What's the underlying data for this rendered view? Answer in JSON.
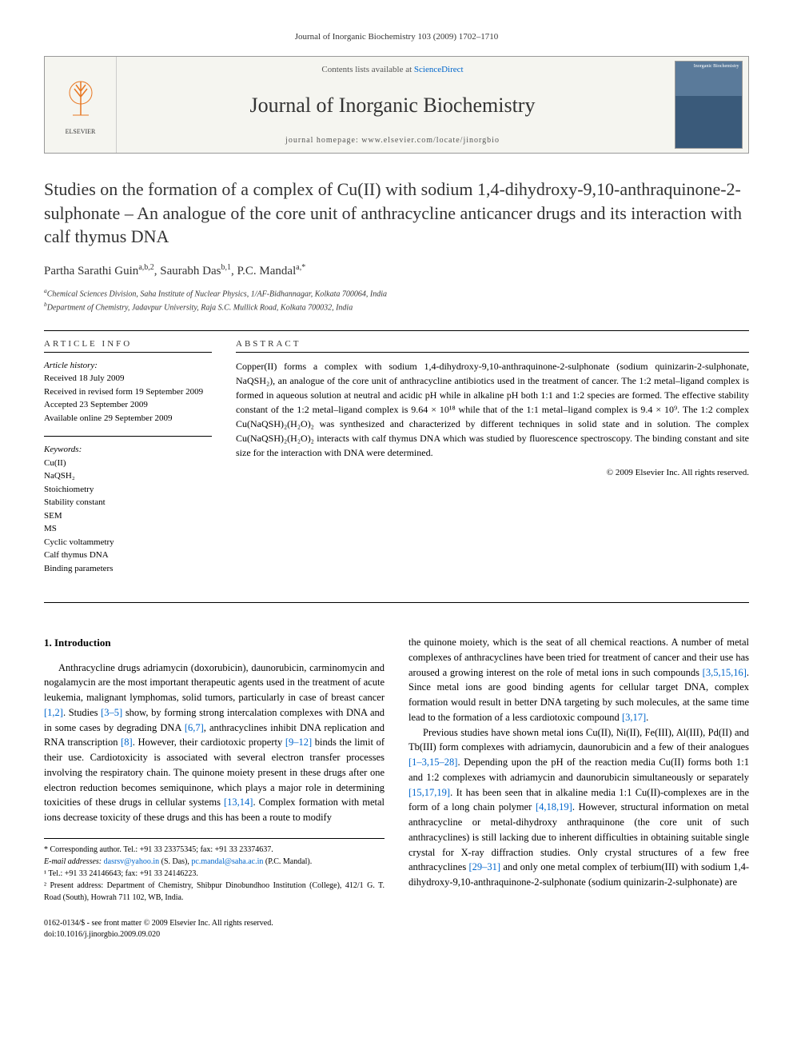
{
  "header": {
    "citation": "Journal of Inorganic Biochemistry 103 (2009) 1702–1710"
  },
  "banner": {
    "elsevier_label": "ELSEVIER",
    "contents_prefix": "Contents lists available at ",
    "contents_link": "ScienceDirect",
    "journal_name": "Journal of Inorganic Biochemistry",
    "homepage_prefix": "journal homepage: ",
    "homepage_url": "www.elsevier.com/locate/jinorgbio",
    "cover_text": "Inorganic Biochemistry"
  },
  "article": {
    "title": "Studies on the formation of a complex of Cu(II) with sodium 1,4-dihydroxy-9,10-anthraquinone-2-sulphonate – An analogue of the core unit of anthracycline anticancer drugs and its interaction with calf thymus DNA",
    "authors_html": "Partha Sarathi Guin<sup>a,b,2</sup>, Saurabh Das<sup>b,1</sup>, P.C. Mandal<sup>a,*</sup>",
    "affiliations": [
      "aChemical Sciences Division, Saha Institute of Nuclear Physics, 1/AF-Bidhannagar, Kolkata 700064, India",
      "bDepartment of Chemistry, Jadavpur University, Raja S.C. Mullick Road, Kolkata 700032, India"
    ]
  },
  "info": {
    "heading": "ARTICLE INFO",
    "history_label": "Article history:",
    "history": [
      "Received 18 July 2009",
      "Received in revised form 19 September 2009",
      "Accepted 23 September 2009",
      "Available online 29 September 2009"
    ],
    "keywords_label": "Keywords:",
    "keywords": [
      "Cu(II)",
      "NaQSH₂",
      "Stoichiometry",
      "Stability constant",
      "SEM",
      "MS",
      "Cyclic voltammetry",
      "Calf thymus DNA",
      "Binding parameters"
    ]
  },
  "abstract": {
    "heading": "ABSTRACT",
    "text": "Copper(II) forms a complex with sodium 1,4-dihydroxy-9,10-anthraquinone-2-sulphonate (sodium quinizarin-2-sulphonate, NaQSH₂), an analogue of the core unit of anthracycline antibiotics used in the treatment of cancer. The 1:2 metal–ligand complex is formed in aqueous solution at neutral and acidic pH while in alkaline pH both 1:1 and 1:2 species are formed. The effective stability constant of the 1:2 metal–ligand complex is 9.64 × 10¹⁸ while that of the 1:1 metal–ligand complex is 9.4 × 10⁹. The 1:2 complex Cu(NaQSH)₂(H₂O)₂ was synthesized and characterized by different techniques in solid state and in solution. The complex Cu(NaQSH)₂(H₂O)₂ interacts with calf thymus DNA which was studied by fluorescence spectroscopy. The binding constant and site size for the interaction with DNA were determined.",
    "copyright": "© 2009 Elsevier Inc. All rights reserved."
  },
  "body": {
    "intro_heading": "1. Introduction",
    "col1_p1_a": "Anthracycline drugs adriamycin (doxorubicin), daunorubicin, carminomycin and nogalamycin are the most important therapeutic agents used in the treatment of acute leukemia, malignant lymphomas, solid tumors, particularly in case of breast cancer ",
    "col1_ref1": "[1,2]",
    "col1_p1_b": ". Studies ",
    "col1_ref2": "[3–5]",
    "col1_p1_c": " show, by forming strong intercalation complexes with DNA and in some cases by degrading DNA ",
    "col1_ref3": "[6,7]",
    "col1_p1_d": ", anthracyclines inhibit DNA replication and RNA transcription ",
    "col1_ref4": "[8]",
    "col1_p1_e": ". However, their cardiotoxic property ",
    "col1_ref5": "[9–12]",
    "col1_p1_f": " binds the limit of their use. Cardiotoxicity is associated with several electron transfer processes involving the respiratory chain. The quinone moiety present in these drugs after one electron reduction becomes semiquinone, which plays a major role in determining toxicities of these drugs in cellular systems ",
    "col1_ref6": "[13,14]",
    "col1_p1_g": ". Complex formation with metal ions decrease toxicity of these drugs and this has been a route to modify",
    "col2_p1_a": "the quinone moiety, which is the seat of all chemical reactions. A number of metal complexes of anthracyclines have been tried for treatment of cancer and their use has aroused a growing interest on the role of metal ions in such compounds ",
    "col2_ref1": "[3,5,15,16]",
    "col2_p1_b": ". Since metal ions are good binding agents for cellular target DNA, complex formation would result in better DNA targeting by such molecules, at the same time lead to the formation of a less cardiotoxic compound ",
    "col2_ref2": "[3,17]",
    "col2_p1_c": ".",
    "col2_p2_a": "Previous studies have shown metal ions Cu(II), Ni(II), Fe(III), Al(III), Pd(II) and Tb(III) form complexes with adriamycin, daunorubicin and a few of their analogues ",
    "col2_ref3": "[1–3,15–28]",
    "col2_p2_b": ". Depending upon the pH of the reaction media Cu(II) forms both 1:1 and 1:2 complexes with adriamycin and daunorubicin simultaneously or separately ",
    "col2_ref4": "[15,17,19]",
    "col2_p2_c": ". It has been seen that in alkaline media 1:1 Cu(II)-complexes are in the form of a long chain polymer ",
    "col2_ref5": "[4,18,19]",
    "col2_p2_d": ". However, structural information on metal anthracycline or metal-dihydroxy anthraquinone (the core unit of such anthracyclines) is still lacking due to inherent difficulties in obtaining suitable single crystal for X-ray diffraction studies. Only crystal structures of a few free anthracyclines ",
    "col2_ref6": "[29–31]",
    "col2_p2_e": " and only one metal complex of terbium(III) with sodium 1,4-dihydroxy-9,10-anthraquinone-2-sulphonate (sodium quinizarin-2-sulphonate) are"
  },
  "footnotes": {
    "corresponding": "* Corresponding author. Tel.: +91 33 23375345; fax: +91 33 23374637.",
    "email_label": "E-mail addresses: ",
    "email1": "dasrsv@yahoo.in",
    "email1_name": " (S. Das), ",
    "email2": "pc.mandal@saha.ac.in",
    "email2_name": " (P.C. Mandal).",
    "fn1": "¹ Tel.: +91 33 24146643; fax: +91 33 24146223.",
    "fn2": "² Present address: Department of Chemistry, Shibpur Dinobundhoo Institution (College), 412/1 G. T. Road (South), Howrah 711 102, WB, India."
  },
  "footer": {
    "line1": "0162-0134/$ - see front matter © 2009 Elsevier Inc. All rights reserved.",
    "line2": "doi:10.1016/j.jinorgbio.2009.09.020"
  }
}
